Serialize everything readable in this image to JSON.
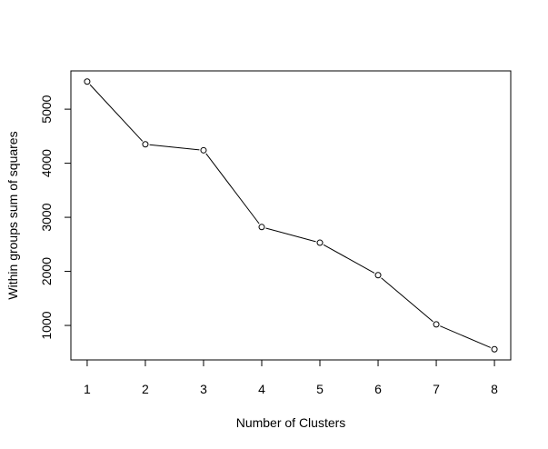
{
  "chart_data": {
    "type": "line",
    "title": "",
    "xlabel": "Number of Clusters",
    "ylabel": "Within groups sum of squares",
    "x": [
      1,
      2,
      3,
      4,
      5,
      6,
      7,
      8
    ],
    "series": [
      {
        "values": [
          5510,
          4350,
          4240,
          2820,
          2530,
          1930,
          1020,
          560
        ]
      }
    ],
    "xticks": [
      "1",
      "2",
      "3",
      "4",
      "5",
      "6",
      "7",
      "8"
    ],
    "yticks": [
      "1000",
      "2000",
      "3000",
      "4000",
      "5000"
    ],
    "xlim": [
      0.72,
      8.28
    ],
    "ylim": [
      362,
      5708
    ],
    "grid": false,
    "marker": "open-circle",
    "line_color": "#000000"
  }
}
